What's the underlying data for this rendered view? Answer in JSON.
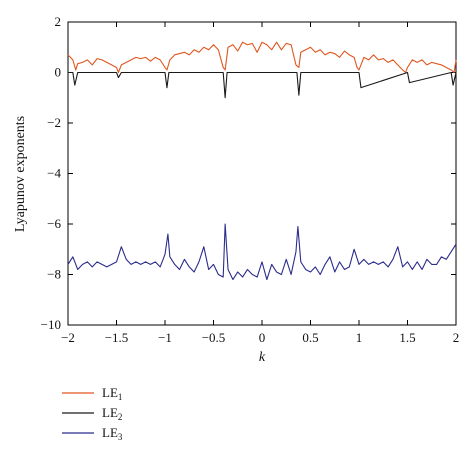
{
  "chart_data": {
    "type": "line",
    "xlabel": "k",
    "ylabel": "Lyapunov exponents",
    "xlim": [
      -2,
      2
    ],
    "ylim": [
      -10,
      2
    ],
    "xticks": [
      -2,
      -1.5,
      -1,
      -0.5,
      0,
      0.5,
      1,
      1.5,
      2
    ],
    "xtick_labels": [
      "−2",
      "−1.5",
      "−1",
      "−0.5",
      "0",
      "0.5",
      "1",
      "1.5",
      "2"
    ],
    "yticks": [
      2,
      0,
      -2,
      -4,
      -6,
      -8,
      -10
    ],
    "ytick_labels": [
      "2",
      "0",
      "−2",
      "−4",
      "−6",
      "−8",
      "−10"
    ],
    "grid": false,
    "legend_position": "below",
    "series": [
      {
        "name": "LE1",
        "label_main": "LE",
        "label_sub": "1",
        "color": "#e0561f",
        "x": [
          -2.0,
          -1.95,
          -1.92,
          -1.9,
          -1.85,
          -1.8,
          -1.75,
          -1.7,
          -1.65,
          -1.6,
          -1.55,
          -1.5,
          -1.48,
          -1.45,
          -1.4,
          -1.35,
          -1.3,
          -1.25,
          -1.2,
          -1.15,
          -1.1,
          -1.05,
          -1.0,
          -0.98,
          -0.95,
          -0.9,
          -0.85,
          -0.8,
          -0.75,
          -0.7,
          -0.65,
          -0.6,
          -0.55,
          -0.5,
          -0.45,
          -0.4,
          -0.38,
          -0.35,
          -0.3,
          -0.25,
          -0.2,
          -0.15,
          -0.1,
          -0.05,
          0.0,
          0.05,
          0.1,
          0.15,
          0.2,
          0.25,
          0.3,
          0.35,
          0.38,
          0.4,
          0.45,
          0.5,
          0.55,
          0.6,
          0.65,
          0.7,
          0.75,
          0.8,
          0.85,
          0.9,
          0.95,
          0.98,
          1.0,
          1.05,
          1.1,
          1.15,
          1.2,
          1.25,
          1.3,
          1.35,
          1.4,
          1.45,
          1.48,
          1.5,
          1.55,
          1.6,
          1.65,
          1.7,
          1.75,
          1.8,
          1.85,
          1.9,
          1.95,
          1.98,
          2.0
        ],
        "y": [
          0.7,
          0.5,
          0.1,
          0.35,
          0.4,
          0.5,
          0.3,
          0.55,
          0.5,
          0.4,
          0.3,
          0.2,
          0.0,
          0.3,
          0.4,
          0.5,
          0.6,
          0.55,
          0.6,
          0.45,
          0.6,
          0.5,
          0.2,
          0.1,
          0.5,
          0.7,
          0.75,
          0.8,
          0.7,
          0.9,
          0.8,
          1.0,
          0.9,
          1.1,
          0.9,
          0.2,
          0.1,
          1.0,
          1.1,
          0.85,
          1.2,
          1.1,
          1.15,
          0.8,
          1.2,
          1.1,
          0.9,
          1.2,
          0.9,
          1.15,
          1.1,
          0.3,
          0.2,
          0.8,
          0.9,
          1.0,
          0.8,
          0.9,
          0.7,
          0.8,
          0.75,
          0.6,
          0.85,
          0.7,
          0.6,
          0.2,
          0.1,
          0.6,
          0.5,
          0.7,
          0.5,
          0.55,
          0.4,
          0.5,
          0.3,
          0.1,
          0.0,
          0.2,
          0.5,
          0.4,
          0.5,
          0.3,
          0.4,
          0.35,
          0.3,
          0.2,
          0.1,
          0.0,
          0.5
        ]
      },
      {
        "name": "LE2",
        "label_main": "LE",
        "label_sub": "2",
        "color": "#1a1a1a",
        "x": [
          -2.0,
          -1.95,
          -1.93,
          -1.9,
          -1.5,
          -1.48,
          -1.45,
          -1.0,
          -0.98,
          -0.96,
          -0.4,
          -0.38,
          -0.36,
          0.36,
          0.38,
          0.4,
          1.0,
          1.02,
          1.5,
          1.52,
          1.95,
          1.97,
          2.0
        ],
        "y": [
          0.0,
          0.0,
          -0.5,
          0.0,
          0.0,
          -0.2,
          0.0,
          0.0,
          -0.6,
          0.0,
          0.0,
          -1.0,
          0.0,
          0.0,
          -0.9,
          0.0,
          0.0,
          -0.6,
          0.0,
          -0.4,
          0.0,
          -0.5,
          0.0
        ]
      },
      {
        "name": "LE3",
        "label_main": "LE",
        "label_sub": "3",
        "color": "#2c2c8c",
        "x": [
          -2.0,
          -1.95,
          -1.9,
          -1.85,
          -1.8,
          -1.75,
          -1.7,
          -1.65,
          -1.6,
          -1.55,
          -1.5,
          -1.45,
          -1.4,
          -1.35,
          -1.3,
          -1.25,
          -1.2,
          -1.15,
          -1.1,
          -1.05,
          -1.0,
          -0.97,
          -0.95,
          -0.9,
          -0.85,
          -0.8,
          -0.75,
          -0.7,
          -0.65,
          -0.6,
          -0.55,
          -0.5,
          -0.45,
          -0.4,
          -0.38,
          -0.35,
          -0.3,
          -0.25,
          -0.2,
          -0.15,
          -0.1,
          -0.05,
          0.0,
          0.05,
          0.1,
          0.15,
          0.2,
          0.25,
          0.3,
          0.35,
          0.37,
          0.4,
          0.45,
          0.5,
          0.55,
          0.6,
          0.65,
          0.7,
          0.75,
          0.8,
          0.85,
          0.9,
          0.95,
          1.0,
          1.05,
          1.1,
          1.15,
          1.2,
          1.25,
          1.3,
          1.35,
          1.4,
          1.45,
          1.5,
          1.55,
          1.6,
          1.65,
          1.7,
          1.75,
          1.8,
          1.85,
          1.9,
          1.95,
          2.0
        ],
        "y": [
          -7.6,
          -7.3,
          -7.8,
          -7.6,
          -7.5,
          -7.7,
          -7.5,
          -7.6,
          -7.7,
          -7.6,
          -7.5,
          -6.9,
          -7.4,
          -7.6,
          -7.5,
          -7.6,
          -7.5,
          -7.6,
          -7.5,
          -7.7,
          -7.2,
          -6.4,
          -7.3,
          -7.6,
          -7.8,
          -7.4,
          -7.7,
          -7.9,
          -7.5,
          -6.9,
          -7.8,
          -7.6,
          -8.0,
          -8.1,
          -6.0,
          -7.8,
          -8.2,
          -7.9,
          -8.1,
          -7.8,
          -8.0,
          -8.1,
          -7.5,
          -8.2,
          -7.6,
          -7.9,
          -8.0,
          -7.4,
          -8.0,
          -7.1,
          -6.1,
          -7.5,
          -7.8,
          -7.9,
          -7.7,
          -8.0,
          -7.6,
          -7.3,
          -7.9,
          -7.5,
          -7.8,
          -7.7,
          -7.0,
          -7.6,
          -7.4,
          -7.6,
          -7.5,
          -7.6,
          -7.5,
          -7.7,
          -7.4,
          -6.9,
          -7.7,
          -7.5,
          -7.8,
          -7.5,
          -7.8,
          -7.4,
          -7.6,
          -7.6,
          -7.3,
          -7.4,
          -7.1,
          -6.8
        ]
      }
    ]
  }
}
